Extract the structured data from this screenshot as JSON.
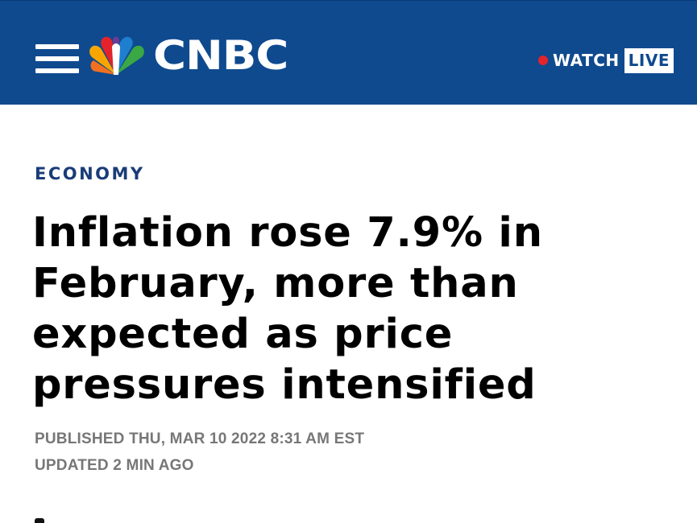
{
  "header": {
    "brand": "CNBC",
    "watch_label": "WATCH",
    "live_label": "LIVE",
    "background_color": "#0f4a8f",
    "live_dot_color": "#e4232b"
  },
  "article": {
    "section": "ECONOMY",
    "headline_lines": [
      "Inflation rose 7.9% in",
      "February, more than",
      "expected as price",
      "pressures intensified"
    ],
    "published": "PUBLISHED THU, MAR 10 2022 8:31 AM EST",
    "updated": "UPDATED 2 MIN AGO"
  },
  "icons": {
    "menu": "hamburger-menu-icon",
    "logo": "peacock-logo-icon",
    "live_indicator": "live-dot-icon"
  }
}
